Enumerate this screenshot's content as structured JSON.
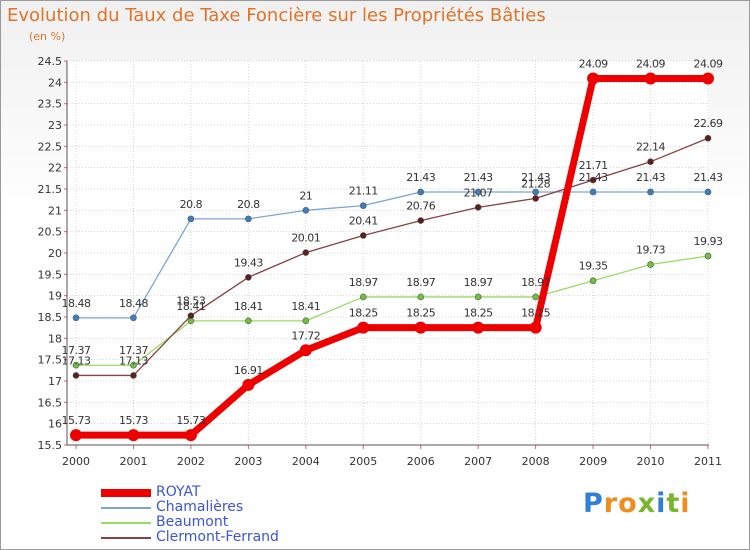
{
  "title": "Evolution du Taux de Taxe Foncière sur les Propriétés Bâties",
  "subtitle": "(en %)",
  "logo": {
    "text": "Proxiti",
    "letters": [
      "P",
      "r",
      "o",
      "x",
      "i",
      "t",
      "i"
    ],
    "colors": [
      "#2e7fd6",
      "#f08c1a",
      "#f08c1a",
      "#7ab52e",
      "#2e7fd6",
      "#7ab52e",
      "#f08c1a"
    ]
  },
  "chart_data": {
    "type": "line",
    "title": "Evolution du Taux de Taxe Foncière sur les Propriétés Bâties",
    "ylabel": "(en %)",
    "xlabel": "",
    "x": [
      "2000",
      "2001",
      "2002",
      "2003",
      "2004",
      "2005",
      "2006",
      "2007",
      "2008",
      "2009",
      "2010",
      "2011"
    ],
    "ylim": [
      15.5,
      24.5
    ],
    "yticks": [
      "15.5",
      "16",
      "16.5",
      "17",
      "17.5",
      "18",
      "18.5",
      "19",
      "19.5",
      "20",
      "20.5",
      "21",
      "21.5",
      "22",
      "22.5",
      "23",
      "23.5",
      "24",
      "24.5"
    ],
    "grid": true,
    "legend_position": "bottom-left",
    "series": [
      {
        "name": "ROYAT",
        "color": "#ee0000",
        "point_color": "#ee0000",
        "values": [
          15.73,
          15.73,
          15.73,
          16.91,
          17.72,
          18.25,
          18.25,
          18.25,
          18.25,
          24.09,
          24.09,
          24.09
        ],
        "labels": [
          "15.73",
          "15.73",
          "15.73",
          "16.91",
          "17.72",
          "18.25",
          "18.25",
          "18.25",
          "18.25",
          "24.09",
          "24.09",
          "24.09"
        ]
      },
      {
        "name": "Chamalières",
        "color": "#7aa6d6",
        "point_color": "#3a7fc4",
        "values": [
          18.48,
          18.48,
          20.8,
          20.8,
          21,
          21.11,
          21.43,
          21.43,
          21.43,
          21.43,
          21.43,
          21.43
        ],
        "labels": [
          "18.48",
          "18.48",
          "20.8",
          "20.8",
          "21",
          "21.11",
          "21.43",
          "21.43",
          "21.43",
          "21.43",
          "21.43",
          "21.43"
        ]
      },
      {
        "name": "Beaumont",
        "color": "#98dc62",
        "point_color": "#6cc23a",
        "values": [
          17.37,
          17.37,
          18.41,
          18.41,
          18.41,
          18.97,
          18.97,
          18.97,
          18.97,
          19.35,
          19.73,
          19.93
        ],
        "labels": [
          "17.37",
          "17.37",
          "18.41",
          "18.41",
          "18.41",
          "18.97",
          "18.97",
          "18.97",
          "18.97",
          "19.35",
          "19.73",
          "19.93"
        ]
      },
      {
        "name": "Clermont-Ferrand",
        "color": "#8a4040",
        "point_color": "#5c1e1e",
        "values": [
          17.13,
          17.13,
          18.53,
          19.43,
          20.01,
          20.41,
          20.76,
          21.07,
          21.28,
          21.71,
          22.14,
          22.69
        ],
        "labels": [
          "17.13",
          "17.13",
          "18.53",
          "19.43",
          "20.01",
          "20.41",
          "20.76",
          "21.07",
          "21.28",
          "21.71",
          "22.14",
          "22.69"
        ]
      }
    ]
  }
}
